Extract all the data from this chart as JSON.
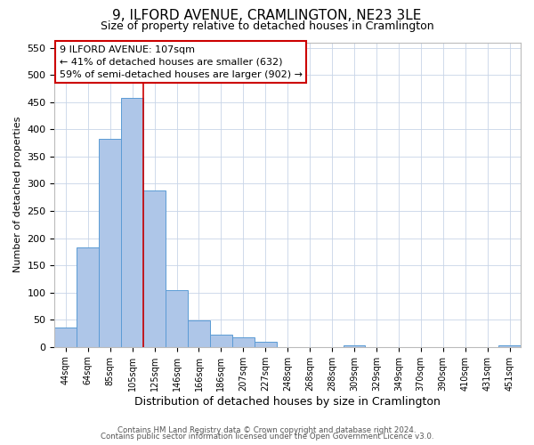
{
  "title": "9, ILFORD AVENUE, CRAMLINGTON, NE23 3LE",
  "subtitle": "Size of property relative to detached houses in Cramlington",
  "bar_labels": [
    "44sqm",
    "64sqm",
    "85sqm",
    "105sqm",
    "125sqm",
    "146sqm",
    "166sqm",
    "186sqm",
    "207sqm",
    "227sqm",
    "248sqm",
    "268sqm",
    "288sqm",
    "309sqm",
    "329sqm",
    "349sqm",
    "370sqm",
    "390sqm",
    "410sqm",
    "431sqm",
    "451sqm"
  ],
  "bar_values": [
    35,
    183,
    383,
    458,
    287,
    105,
    49,
    22,
    18,
    10,
    0,
    0,
    0,
    3,
    0,
    0,
    0,
    0,
    0,
    0,
    3
  ],
  "bar_color": "#aec6e8",
  "bar_edge_color": "#5b9bd5",
  "vline_value": 107,
  "vline_color": "#cc0000",
  "ylim": [
    0,
    560
  ],
  "yticks": [
    0,
    50,
    100,
    150,
    200,
    250,
    300,
    350,
    400,
    450,
    500,
    550
  ],
  "ylabel": "Number of detached properties",
  "xlabel": "Distribution of detached houses by size in Cramlington",
  "annotation_title": "9 ILFORD AVENUE: 107sqm",
  "annotation_line1": "← 41% of detached houses are smaller (632)",
  "annotation_line2": "59% of semi-detached houses are larger (902) →",
  "annotation_box_color": "#ffffff",
  "annotation_box_edge": "#cc0000",
  "footer1": "Contains HM Land Registry data © Crown copyright and database right 2024.",
  "footer2": "Contains public sector information licensed under the Open Government Licence v3.0.",
  "bg_color": "#ffffff",
  "grid_color": "#c8d4e8",
  "title_fontsize": 11,
  "subtitle_fontsize": 9
}
